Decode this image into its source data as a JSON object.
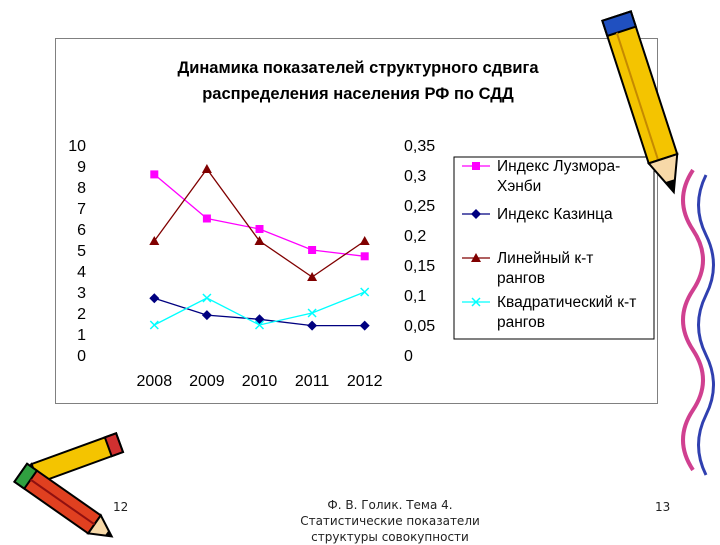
{
  "chart_data": {
    "type": "line",
    "title": [
      "Динамика показателей структурного сдвига",
      "распределения населения РФ по СДД"
    ],
    "categories": [
      "2008",
      "2009",
      "2010",
      "2011",
      "2012"
    ],
    "y_left": {
      "min": 0,
      "max": 10,
      "ticks": [
        "0",
        "1",
        "2",
        "3",
        "4",
        "5",
        "6",
        "7",
        "8",
        "9",
        "10"
      ]
    },
    "y_right": {
      "min": 0,
      "max": 0.35,
      "ticks": [
        "0",
        "0,05",
        "0,1",
        "0,15",
        "0,2",
        "0,25",
        "0,3",
        "0,35"
      ]
    },
    "grid": false,
    "legend_position": "right",
    "series": [
      {
        "name": [
          "Индекс Лузмора-",
          "Хэнби"
        ],
        "axis": "left",
        "color": "#ff00ff",
        "marker": "square",
        "values": [
          8.6,
          6.5,
          6.0,
          5.0,
          4.7
        ]
      },
      {
        "name": [
          "Индекс Казинца"
        ],
        "axis": "left",
        "color": "#000080",
        "marker": "diamond",
        "values": [
          2.7,
          1.9,
          1.7,
          1.4,
          1.4
        ]
      },
      {
        "name": [
          "Линейный к-т",
          "рангов"
        ],
        "axis": "right",
        "color": "#800000",
        "marker": "triangle",
        "values": [
          0.19,
          0.31,
          0.19,
          0.13,
          0.19
        ]
      },
      {
        "name": [
          "Квадратический к-т",
          "рангов"
        ],
        "axis": "right",
        "color": "#00ffff",
        "marker": "x",
        "values": [
          0.05,
          0.095,
          0.05,
          0.07,
          0.105
        ]
      }
    ]
  },
  "footer": {
    "page_left": "12",
    "page_right": "13",
    "center_lines": [
      "Ф. В. Голик. Тема 4.",
      "Статистические показатели",
      "структуры совокупности"
    ]
  },
  "decorations": {
    "pencil_icons": [
      "pencil-icon-right",
      "pencils-icon-bottom-left"
    ]
  }
}
